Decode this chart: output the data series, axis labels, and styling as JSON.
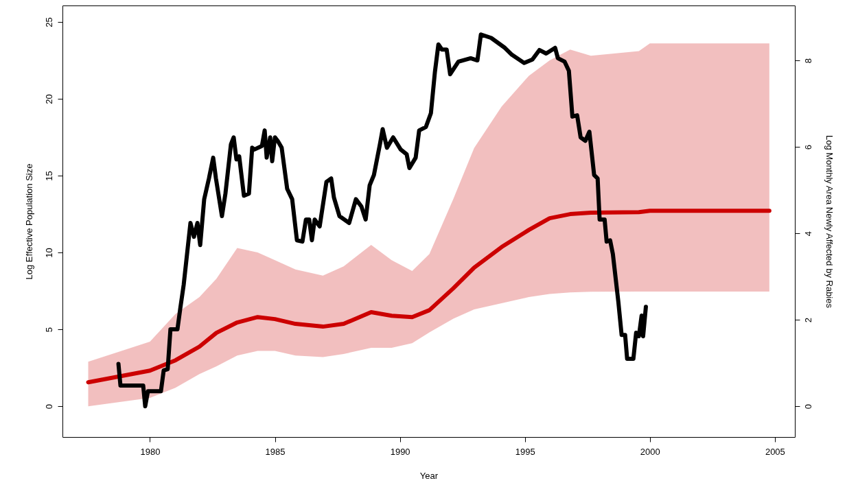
{
  "chart_data": {
    "type": "line",
    "xlabel": "Year",
    "ylabel": "Log Effective Population Size",
    "y2label": "Log Monthly Area Newly Affected by Rabies",
    "xlim": [
      1976.5,
      2005.8
    ],
    "xticks": [
      1980,
      1985,
      1990,
      1995,
      2000,
      2005
    ],
    "ylim": [
      -2,
      26.07
    ],
    "yticks": [
      0,
      5,
      10,
      15,
      20,
      25
    ],
    "y2lim": [
      -0.71,
      9.27
    ],
    "y2ticks": [
      0,
      2,
      4,
      6,
      8
    ],
    "grid": false,
    "series": [
      {
        "color": "#cc0000",
        "x": [
          1977.53,
          1980,
          1981.02,
          1981.98,
          1982.66,
          1983.49,
          1984.31,
          1985,
          1985.82,
          1986.92,
          1987.75,
          1988.85,
          1989.67,
          1990.49,
          1991.18,
          1992.14,
          1992.97,
          1994.07,
          1995.16,
          1995.99,
          1996.81,
          1997.64,
          1999.56,
          2000,
          2004.78
        ],
        "values": [
          1.56,
          2.32,
          2.99,
          3.88,
          4.78,
          5.45,
          5.8,
          5.67,
          5.36,
          5.18,
          5.36,
          6.12,
          5.89,
          5.8,
          6.25,
          7.68,
          9.02,
          10.36,
          11.47,
          12.23,
          12.5,
          12.59,
          12.63,
          12.72,
          12.72
        ],
        "lower": [
          0,
          0.54,
          1.2,
          2.1,
          2.6,
          3.3,
          3.6,
          3.6,
          3.3,
          3.2,
          3.4,
          3.8,
          3.8,
          4.1,
          4.8,
          5.7,
          6.3,
          6.7,
          7.1,
          7.3,
          7.4,
          7.45,
          7.46,
          7.46,
          7.46
        ],
        "upper": [
          2.9,
          4.2,
          6,
          7.1,
          8.3,
          10.3,
          10,
          9.5,
          8.9,
          8.5,
          9.1,
          10.5,
          9.5,
          8.8,
          9.9,
          13.5,
          16.8,
          19.5,
          21.5,
          22.5,
          23.2,
          22.8,
          23.1,
          23.6,
          23.6
        ]
      },
      {
        "axis": "y2",
        "color": "#000000",
        "x": [
          1978.74,
          1978.82,
          1979.73,
          1979.81,
          1979.92,
          1980.44,
          1980.55,
          1980.71,
          1980.82,
          1981.1,
          1981.21,
          1981.35,
          1981.62,
          1981.76,
          1981.9,
          1982.01,
          1982.17,
          1982.36,
          1982.53,
          1982.64,
          1982.88,
          1983.02,
          1983.24,
          1983.35,
          1983.46,
          1983.57,
          1983.76,
          1983.96,
          1984.09,
          1984.18,
          1984.48,
          1984.59,
          1984.67,
          1984.81,
          1984.89,
          1985,
          1985.11,
          1985.27,
          1985.49,
          1985.69,
          1985.88,
          1986.1,
          1986.24,
          1986.37,
          1986.48,
          1986.59,
          1986.79,
          1987.06,
          1987.25,
          1987.36,
          1987.58,
          1987.97,
          1988.24,
          1988.46,
          1988.63,
          1988.79,
          1988.96,
          1989.2,
          1989.31,
          1989.48,
          1989.73,
          1990.03,
          1990.27,
          1990.38,
          1990.63,
          1990.77,
          1991.04,
          1991.24,
          1991.4,
          1991.54,
          1991.68,
          1991.87,
          1992.01,
          1992.34,
          1992.83,
          1993.1,
          1993.24,
          1993.65,
          1994.2,
          1994.48,
          1994.97,
          1995.3,
          1995.58,
          1995.85,
          1996.21,
          1996.32,
          1996.59,
          1996.76,
          1996.9,
          1997.09,
          1997.23,
          1997.42,
          1997.58,
          1997.77,
          1997.91,
          1997.99,
          1998.19,
          1998.27,
          1998.41,
          1998.52,
          1998.74,
          1998.87,
          1999.01,
          1999.09,
          1999.34,
          1999.45,
          1999.56,
          1999.67,
          1999.73,
          1999.84
        ],
        "values": [
          0.98,
          0.48,
          0.48,
          0,
          0.35,
          0.35,
          0.83,
          0.86,
          1.78,
          1.78,
          2.25,
          2.81,
          4.24,
          3.92,
          4.24,
          3.73,
          4.79,
          5.27,
          5.75,
          5.27,
          4.4,
          4.92,
          6.06,
          6.22,
          5.71,
          5.78,
          4.87,
          4.92,
          5.98,
          5.94,
          6.02,
          6.38,
          5.75,
          6.22,
          5.67,
          6.22,
          6.14,
          5.98,
          5.03,
          4.79,
          3.84,
          3.81,
          4.32,
          4.32,
          3.84,
          4.32,
          4.16,
          5.19,
          5.27,
          4.83,
          4.4,
          4.24,
          4.79,
          4.62,
          4.32,
          5.11,
          5.35,
          6.06,
          6.41,
          5.98,
          6.22,
          5.94,
          5.83,
          5.51,
          5.75,
          6.38,
          6.46,
          6.78,
          7.73,
          8.37,
          8.25,
          8.25,
          7.68,
          7.97,
          8.05,
          8,
          8.6,
          8.52,
          8.29,
          8.13,
          7.94,
          8.02,
          8.24,
          8.16,
          8.29,
          8.05,
          7.97,
          7.76,
          6.7,
          6.73,
          6.22,
          6.14,
          6.35,
          5.35,
          5.27,
          4.32,
          4.32,
          3.81,
          3.84,
          3.52,
          2.41,
          1.65,
          1.65,
          1.1,
          1.1,
          1.7,
          1.62,
          2.1,
          1.62,
          2.3
        ]
      }
    ]
  }
}
